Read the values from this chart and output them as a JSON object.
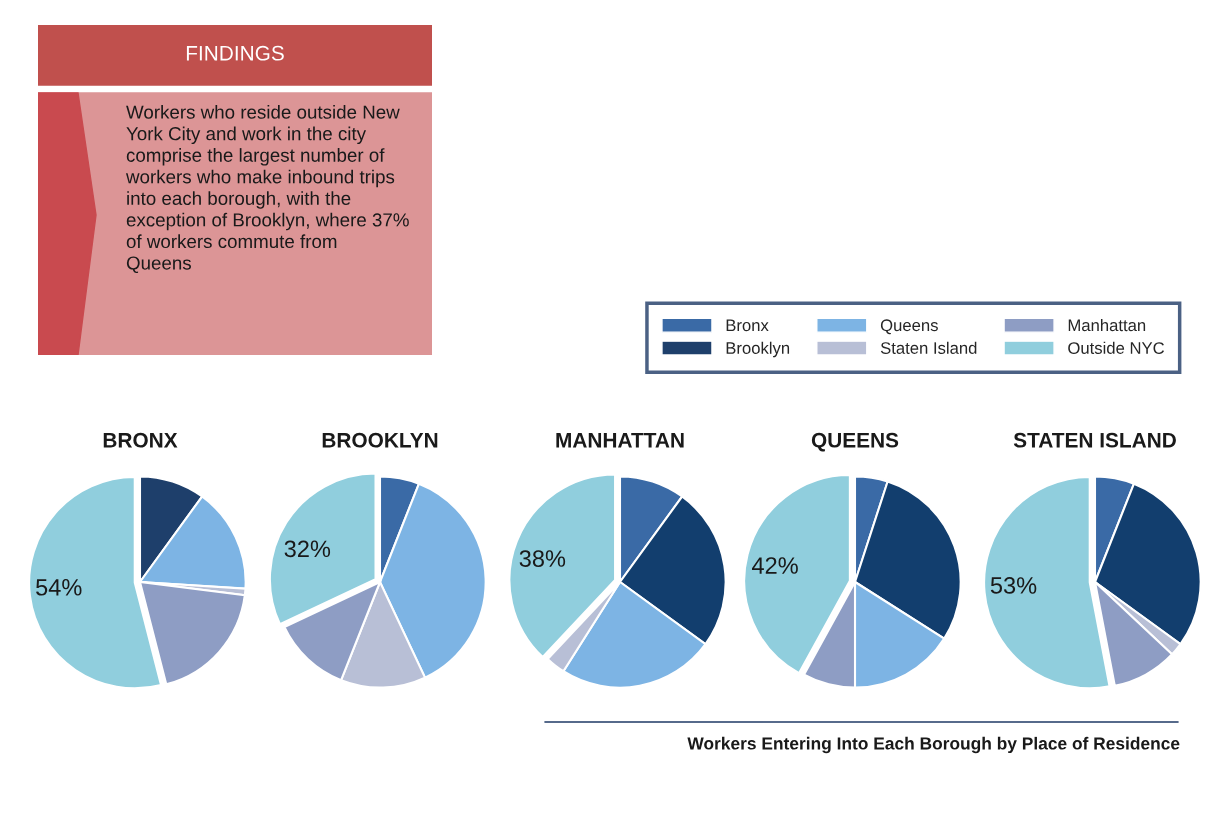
{
  "chart_data": [
    {
      "type": "other",
      "title": "FINDINGS",
      "annotations": [
        "Workers who reside outside New\nYork City and work in the city\ncomprise the largest number of\nworkers who make inbound trips\ninto each borough, with the\nexception of Brooklyn, where 37%\nof workers commute from\nQueens"
      ]
    },
    {
      "type": "pie",
      "title": "BRONX",
      "categories": [
        "Bronx",
        "Brooklyn",
        "Queens",
        "Staten Island",
        "Manhattan",
        "Outside NYC"
      ],
      "values": [
        null,
        10,
        16,
        1,
        19,
        54
      ],
      "colors": [
        "#3a6aa6",
        "#1e3f6b",
        "#7db4e4",
        "#b8bfd6",
        "#8e9dc4",
        "#90cedd"
      ],
      "value_labels": [
        null,
        null,
        null,
        null,
        null,
        "54%"
      ],
      "legend": "top right"
    },
    {
      "type": "pie",
      "title": "BROOKLYN",
      "categories": [
        null,
        null,
        null,
        null,
        null,
        null
      ],
      "values": [
        6,
        null,
        37,
        13,
        12,
        32
      ],
      "colors": [
        "#3a6aa6",
        "#1e3f6b",
        "#7db4e4",
        "#b8bfd6",
        "#8e9dc4",
        "#90cedd"
      ],
      "value_labels": [
        null,
        null,
        null,
        null,
        null,
        "32%"
      ]
    },
    {
      "type": "pie",
      "title": "MANHATTAN",
      "categories": [
        null,
        null,
        null,
        null,
        null,
        null
      ],
      "values": [
        10,
        25,
        24,
        3,
        null,
        38
      ],
      "colors": [
        "#3a6aa6",
        "#123e6e",
        "#7db4e4",
        "#b8bfd6",
        "#8e9dc4",
        "#90cedd"
      ],
      "value_labels": [
        null,
        null,
        null,
        null,
        null,
        "38%"
      ]
    },
    {
      "type": "pie",
      "title": "QUEENS",
      "categories": [
        null,
        null,
        null,
        null,
        null,
        null
      ],
      "values": [
        5,
        29,
        16,
        null,
        8,
        42
      ],
      "colors": [
        "#3a6aa6",
        "#123e6e",
        "#7db4e4",
        "#b8bfd6",
        "#8e9dc4",
        "#90cedd"
      ],
      "value_labels": [
        null,
        null,
        null,
        null,
        null,
        "42%"
      ]
    },
    {
      "type": "pie",
      "title": "STATEN ISLAND",
      "categories": [
        null,
        null,
        null,
        null,
        null,
        null
      ],
      "values": [
        6,
        29,
        null,
        2,
        10,
        53
      ],
      "colors": [
        "#3a6aa6",
        "#123e6e",
        "#7db4e4",
        "#b8bfd6",
        "#8e9dc4",
        "#90cedd"
      ],
      "value_labels": [
        null,
        null,
        null,
        null,
        null,
        "53%"
      ],
      "annotations": [
        "Workers Entering Into Each Borough by Place of Residence"
      ]
    }
  ]
}
